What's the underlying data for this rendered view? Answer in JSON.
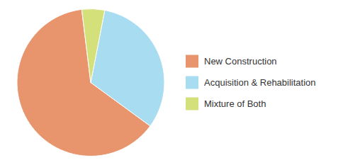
{
  "chart_data": {
    "type": "pie",
    "categories": [
      "New Construction",
      "Acquisition & Rehabilitation",
      "Mixture of Both"
    ],
    "values": [
      63,
      32,
      5
    ],
    "colors": [
      "#E8956D",
      "#A8DCF0",
      "#D4E07A"
    ],
    "legend": "right"
  }
}
